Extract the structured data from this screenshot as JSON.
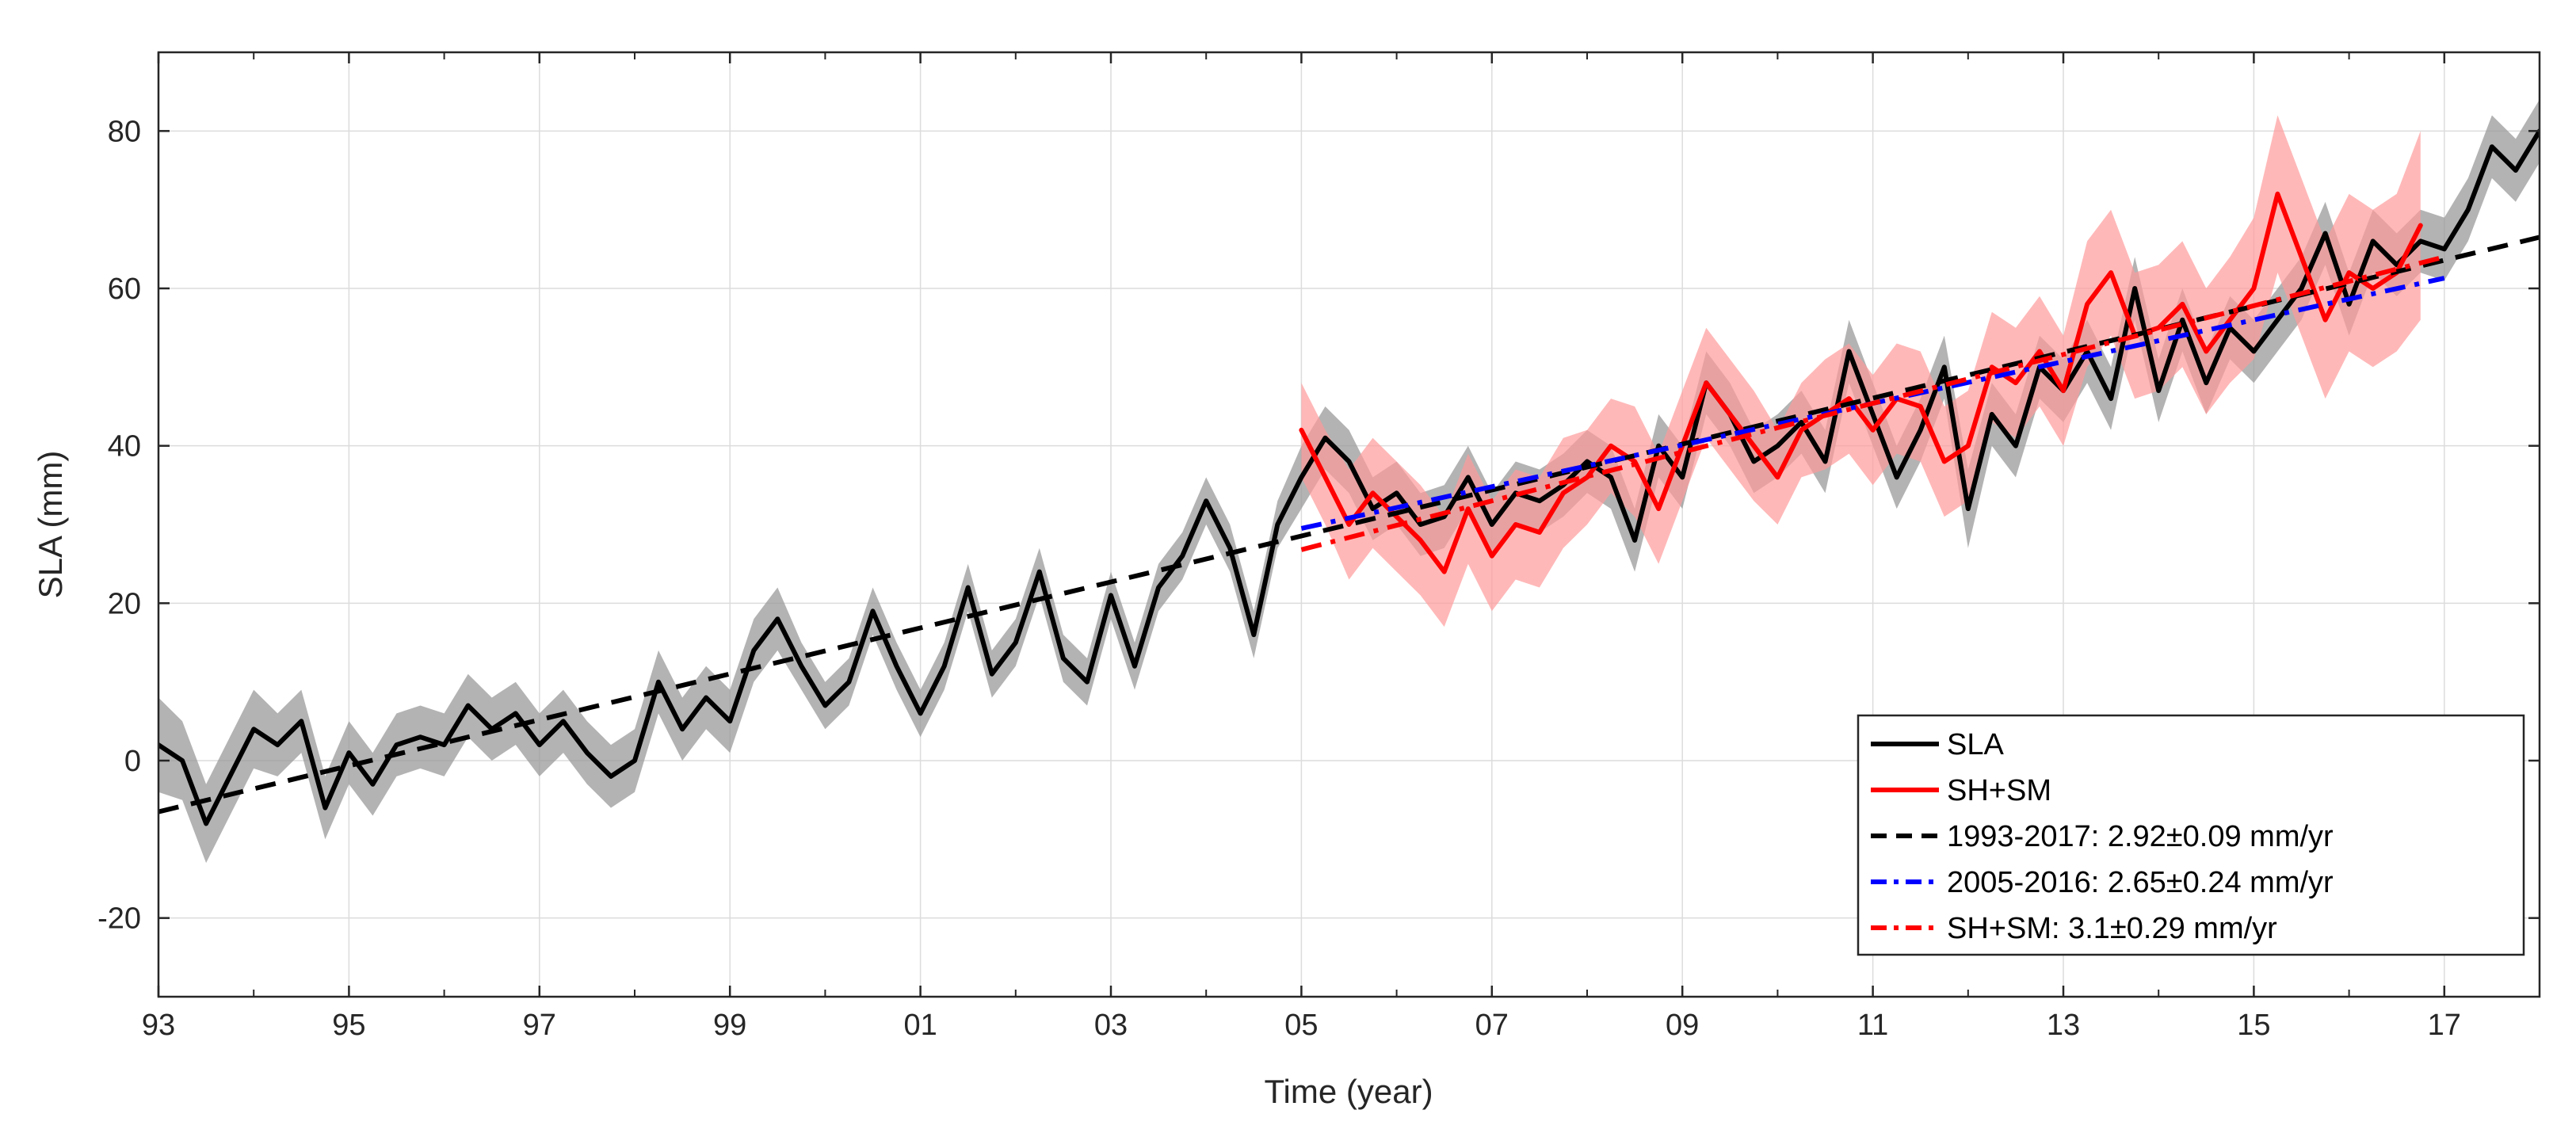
{
  "chart_data": {
    "type": "line",
    "title": "",
    "xlabel": "Time (year)",
    "ylabel": "SLA (mm)",
    "xlim": [
      1993,
      2018
    ],
    "ylim": [
      -30,
      90
    ],
    "grid": true,
    "legend_position": "bottom-right",
    "x_ticks": [
      1993,
      1995,
      1997,
      1999,
      2001,
      2003,
      2005,
      2007,
      2009,
      2011,
      2013,
      2015,
      2017
    ],
    "x_tick_labels": [
      "93",
      "95",
      "97",
      "99",
      "01",
      "03",
      "05",
      "07",
      "09",
      "11",
      "13",
      "15",
      "17"
    ],
    "y_ticks": [
      -20,
      0,
      20,
      40,
      60,
      80
    ],
    "y_tick_labels": [
      "-20",
      "0",
      "20",
      "40",
      "60",
      "80"
    ],
    "series": [
      {
        "name": "SLA",
        "kind": "line",
        "color": "#000000",
        "band_color": "#999999",
        "x": [
          1993.0,
          1993.25,
          1993.5,
          1993.75,
          1994.0,
          1994.25,
          1994.5,
          1994.75,
          1995.0,
          1995.25,
          1995.5,
          1995.75,
          1996.0,
          1996.25,
          1996.5,
          1996.75,
          1997.0,
          1997.25,
          1997.5,
          1997.75,
          1998.0,
          1998.25,
          1998.5,
          1998.75,
          1999.0,
          1999.25,
          1999.5,
          1999.75,
          2000.0,
          2000.25,
          2000.5,
          2000.75,
          2001.0,
          2001.25,
          2001.5,
          2001.75,
          2002.0,
          2002.25,
          2002.5,
          2002.75,
          2003.0,
          2003.25,
          2003.5,
          2003.75,
          2004.0,
          2004.25,
          2004.5,
          2004.75,
          2005.0,
          2005.25,
          2005.5,
          2005.75,
          2006.0,
          2006.25,
          2006.5,
          2006.75,
          2007.0,
          2007.25,
          2007.5,
          2007.75,
          2008.0,
          2008.25,
          2008.5,
          2008.75,
          2009.0,
          2009.25,
          2009.5,
          2009.75,
          2010.0,
          2010.25,
          2010.5,
          2010.75,
          2011.0,
          2011.25,
          2011.5,
          2011.75,
          2012.0,
          2012.25,
          2012.5,
          2012.75,
          2013.0,
          2013.25,
          2013.5,
          2013.75,
          2014.0,
          2014.25,
          2014.5,
          2014.75,
          2015.0,
          2015.25,
          2015.5,
          2015.75,
          2016.0,
          2016.25,
          2016.5,
          2016.75,
          2017.0,
          2017.25,
          2017.5,
          2017.75,
          2018.0
        ],
        "y": [
          2,
          0,
          -8,
          -2,
          4,
          2,
          5,
          -6,
          1,
          -3,
          2,
          3,
          2,
          7,
          4,
          6,
          2,
          5,
          1,
          -2,
          0,
          10,
          4,
          8,
          5,
          14,
          18,
          12,
          7,
          10,
          19,
          12,
          6,
          12,
          22,
          11,
          15,
          24,
          13,
          10,
          21,
          12,
          22,
          26,
          33,
          27,
          16,
          30,
          36,
          41,
          38,
          32,
          34,
          30,
          31,
          36,
          30,
          34,
          33,
          35,
          38,
          36,
          28,
          40,
          36,
          48,
          44,
          38,
          40,
          43,
          38,
          52,
          44,
          36,
          42,
          50,
          32,
          44,
          40,
          50,
          47,
          52,
          46,
          60,
          47,
          56,
          48,
          55,
          52,
          56,
          60,
          67,
          58,
          66,
          63,
          66,
          65,
          70,
          78,
          75,
          80
        ],
        "band_halfwidth": [
          6,
          5,
          5,
          5,
          5,
          4,
          4,
          4,
          4,
          4,
          4,
          4,
          4,
          4,
          4,
          4,
          4,
          4,
          4,
          4,
          4,
          4,
          4,
          4,
          4,
          4,
          4,
          3,
          3,
          3,
          3,
          3,
          3,
          3,
          3,
          3,
          3,
          3,
          3,
          3,
          3,
          3,
          3,
          3,
          3,
          3,
          3,
          3,
          4,
          4,
          4,
          4,
          4,
          4,
          4,
          4,
          4,
          4,
          4,
          4,
          4,
          4,
          4,
          4,
          4,
          4,
          4,
          4,
          4,
          4,
          4,
          4,
          4,
          4,
          4,
          4,
          5,
          4,
          4,
          4,
          4,
          4,
          4,
          4,
          4,
          4,
          4,
          4,
          4,
          4,
          4,
          4,
          4,
          4,
          4,
          4,
          4,
          4,
          4,
          4,
          4
        ]
      },
      {
        "name": "SH+SM",
        "kind": "line",
        "color": "#ff0000",
        "band_color": "#ff9a9a",
        "x": [
          2005.0,
          2005.25,
          2005.5,
          2005.75,
          2006.0,
          2006.25,
          2006.5,
          2006.75,
          2007.0,
          2007.25,
          2007.5,
          2007.75,
          2008.0,
          2008.25,
          2008.5,
          2008.75,
          2009.0,
          2009.25,
          2009.5,
          2009.75,
          2010.0,
          2010.25,
          2010.5,
          2010.75,
          2011.0,
          2011.25,
          2011.5,
          2011.75,
          2012.0,
          2012.25,
          2012.5,
          2012.75,
          2013.0,
          2013.25,
          2013.5,
          2013.75,
          2014.0,
          2014.25,
          2014.5,
          2014.75,
          2015.0,
          2015.25,
          2015.5,
          2015.75,
          2016.0,
          2016.25,
          2016.5,
          2016.75
        ],
        "y": [
          42,
          36,
          30,
          34,
          31,
          28,
          24,
          32,
          26,
          30,
          29,
          34,
          36,
          40,
          38,
          32,
          40,
          48,
          44,
          40,
          36,
          42,
          44,
          46,
          42,
          46,
          45,
          38,
          40,
          50,
          48,
          52,
          47,
          58,
          62,
          54,
          55,
          58,
          52,
          56,
          60,
          72,
          64,
          56,
          62,
          60,
          62,
          68
        ],
        "band_halfwidth": [
          6,
          6,
          7,
          7,
          7,
          7,
          7,
          7,
          7,
          7,
          7,
          7,
          6,
          6,
          7,
          7,
          7,
          7,
          7,
          7,
          6,
          6,
          7,
          7,
          7,
          7,
          7,
          7,
          7,
          7,
          7,
          7,
          7,
          8,
          8,
          8,
          8,
          8,
          8,
          8,
          9,
          10,
          10,
          10,
          10,
          10,
          10,
          12
        ]
      },
      {
        "name": "1993-2017: 2.92±0.09 mm/yr",
        "kind": "trend",
        "color": "#000000",
        "dash": "dashed",
        "x": [
          1993.0,
          2018.0
        ],
        "y": [
          -6.5,
          66.5
        ]
      },
      {
        "name": "2005-2016: 2.65±0.24 mm/yr",
        "kind": "trend",
        "color": "#0000ff",
        "dash": "dashdot",
        "x": [
          2005.0,
          2017.0
        ],
        "y": [
          29.5,
          61.3
        ]
      },
      {
        "name": "SH+SM: 3.1±0.29 mm/yr",
        "kind": "trend",
        "color": "#ff0000",
        "dash": "dashdot",
        "x": [
          2005.0,
          2017.0
        ],
        "y": [
          26.8,
          64.0
        ]
      }
    ]
  }
}
